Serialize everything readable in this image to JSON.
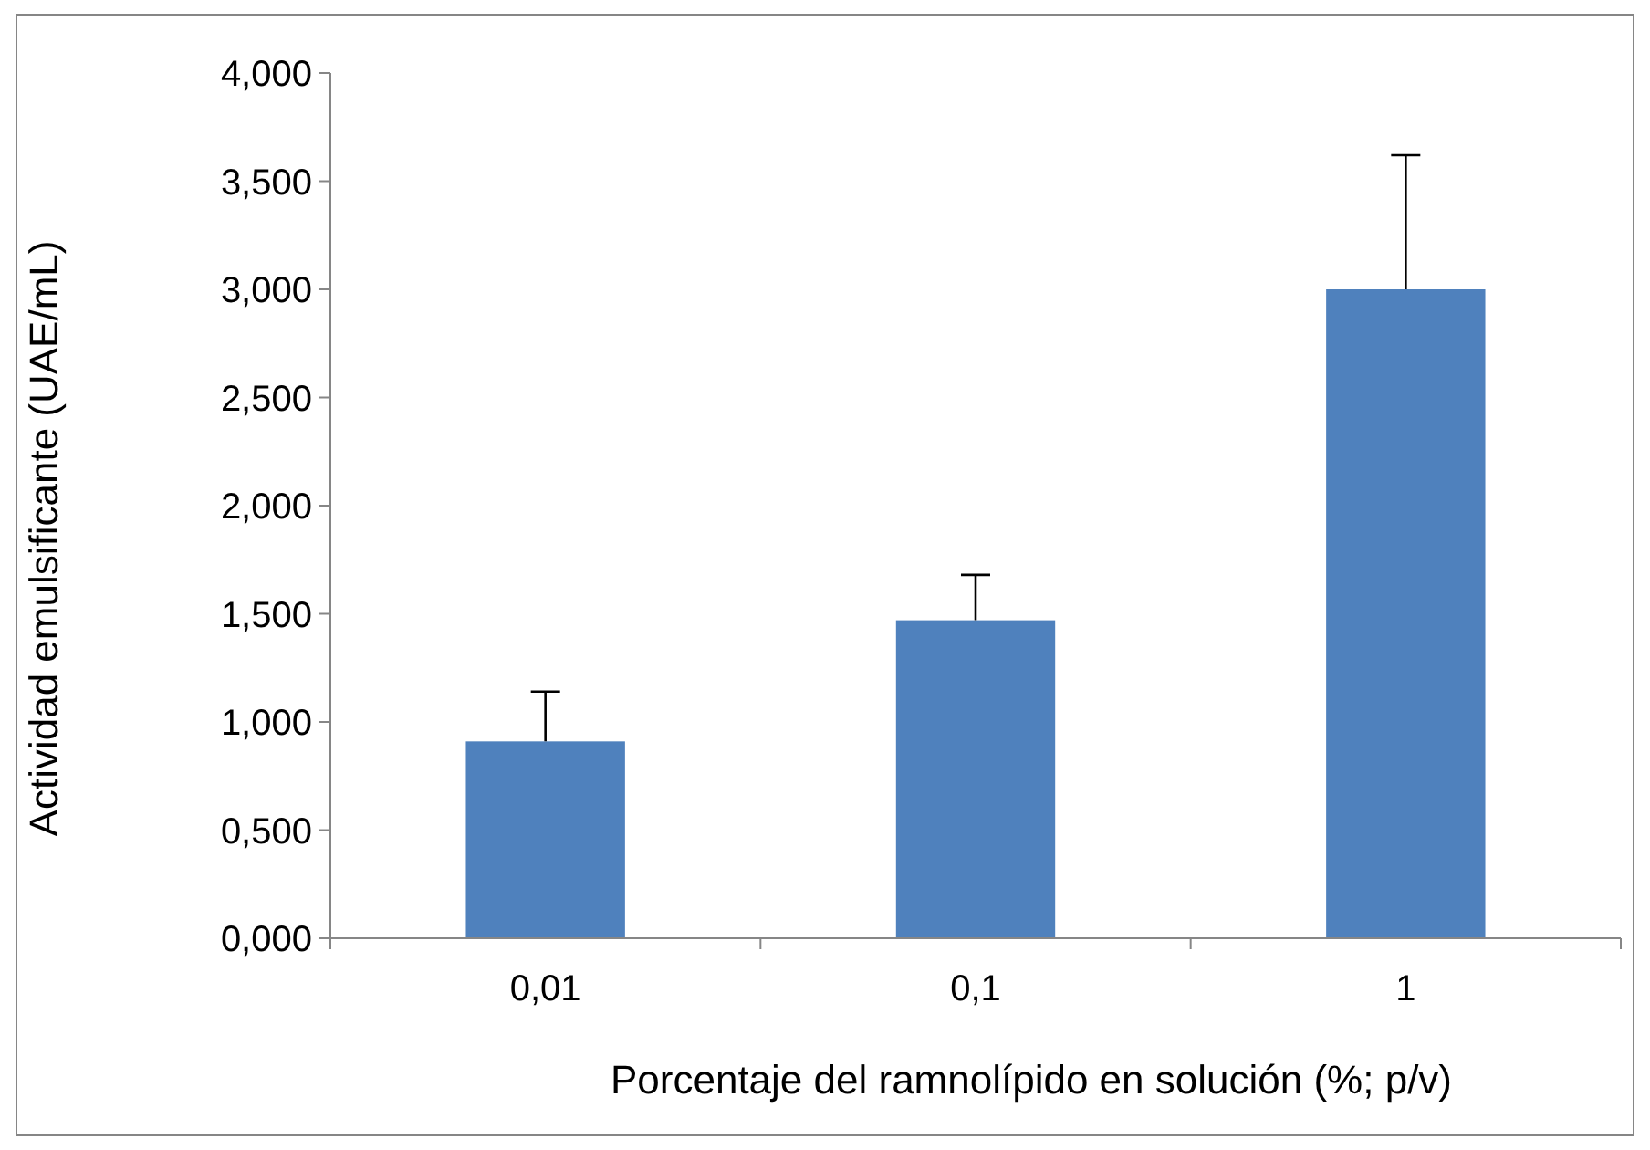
{
  "chart_data": {
    "type": "bar",
    "xlabel": "Porcentaje del ramnolípido en solución (%; p/v)",
    "ylabel": "Actividad emulsificante (UAE/mL)",
    "categories": [
      "0,01",
      "0,1",
      "1"
    ],
    "values": [
      0.91,
      1.47,
      3.0
    ],
    "errors": [
      [
        0.91,
        1.14
      ],
      [
        1.47,
        1.68
      ],
      [
        3.0,
        3.62
      ]
    ],
    "color": "#4f81bd",
    "ylim": [
      0,
      4
    ],
    "yticks": [
      {
        "value": 0,
        "label": "0,000"
      },
      {
        "value": 0.5,
        "label": "0,500"
      },
      {
        "value": 1,
        "label": "1,000"
      },
      {
        "value": 1.5,
        "label": "1,500"
      },
      {
        "value": 2,
        "label": "2,000"
      },
      {
        "value": 2.5,
        "label": "2,500"
      },
      {
        "value": 3,
        "label": "3,000"
      },
      {
        "value": 3.5,
        "label": "3,500"
      },
      {
        "value": 4,
        "label": "4,000"
      }
    ],
    "grid": false
  }
}
